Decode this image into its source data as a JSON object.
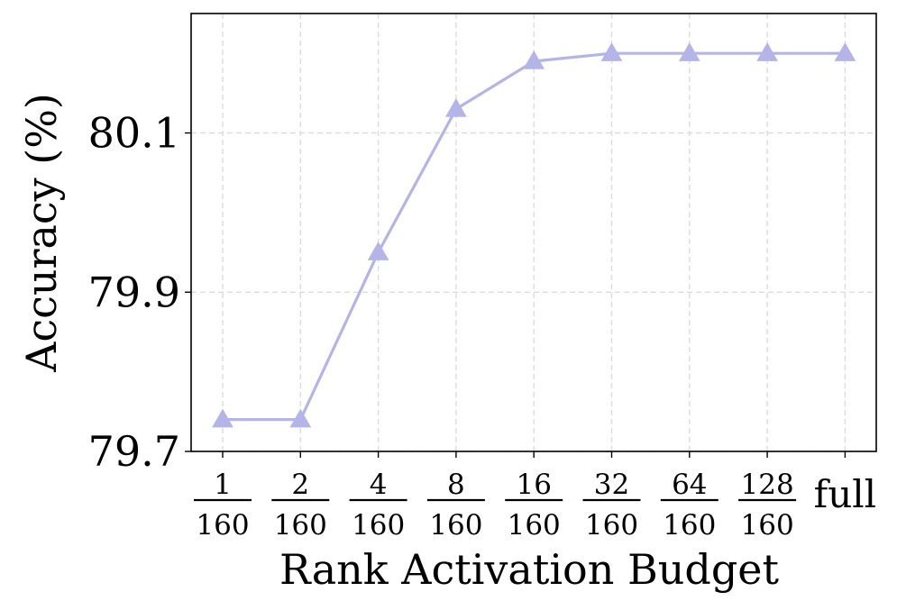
{
  "chart_data": {
    "type": "line",
    "xlabel": "Rank Activation Budget",
    "ylabel": "Accuracy (%)",
    "categories": [
      {
        "num": "1",
        "den": "160"
      },
      {
        "num": "2",
        "den": "160"
      },
      {
        "num": "4",
        "den": "160"
      },
      {
        "num": "8",
        "den": "160"
      },
      {
        "num": "16",
        "den": "160"
      },
      {
        "num": "32",
        "den": "160"
      },
      {
        "num": "64",
        "den": "160"
      },
      {
        "num": "128",
        "den": "160"
      },
      {
        "label": "full"
      }
    ],
    "series": [
      {
        "values": [
          79.74,
          79.74,
          79.95,
          80.13,
          80.19,
          80.2,
          80.2,
          80.2,
          80.2
        ],
        "color": "#b4b4e8",
        "marker": "triangle-up"
      }
    ],
    "yticks": [
      79.7,
      79.9,
      80.1
    ],
    "ytick_labels": [
      "79.7",
      "79.9",
      "80.1"
    ],
    "ylim": [
      79.7,
      80.25
    ],
    "grid": true
  }
}
